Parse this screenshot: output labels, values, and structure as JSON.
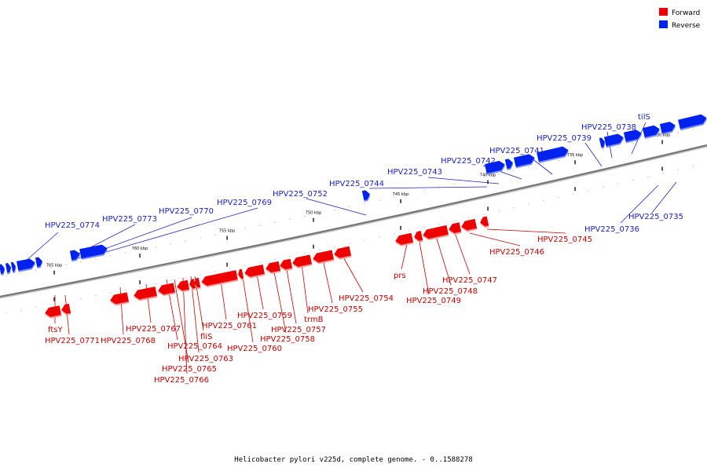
{
  "legend": {
    "forward": {
      "label": "Forward",
      "color": "#ee0000"
    },
    "reverse": {
      "label": "Reverse",
      "color": "#0022ee"
    }
  },
  "caption": "Helicobacter pylori v225d, complete genome. - 0..1588278",
  "ticks": [
    "765 kbp",
    "760 kbp",
    "755 kbp",
    "750 kbp",
    "745 kbp",
    "740 kbp",
    "735 kbp",
    "730 kbp"
  ],
  "genes": {
    "reverse": [
      "HPV225_0774",
      "HPV225_0773",
      "HPV225_0770",
      "HPV225_0769",
      "HPV225_0752",
      "HPV225_0744",
      "HPV225_0743",
      "HPV225_0742",
      "HPV225_0741",
      "HPV225_0739",
      "HPV225_0738",
      "tilS",
      "HPV225_0736",
      "HPV225_0735"
    ],
    "forward": [
      "ftsY",
      "HPV225_0771",
      "HPV225_0768",
      "HPV225_0767",
      "HPV225_0764",
      "HPV225_0765",
      "HPV225_0766",
      "HPV225_0763",
      "fliS",
      "HPV225_0761",
      "HPV225_0760",
      "HPV225_0759",
      "HPV225_0758",
      "HPV225_0757",
      "trmB",
      "HPV225_0755",
      "HPV225_0754",
      "prs",
      "HPV225_0749",
      "HPV225_0748",
      "HPV225_0747",
      "HPV225_0746",
      "HPV225_0745"
    ]
  }
}
